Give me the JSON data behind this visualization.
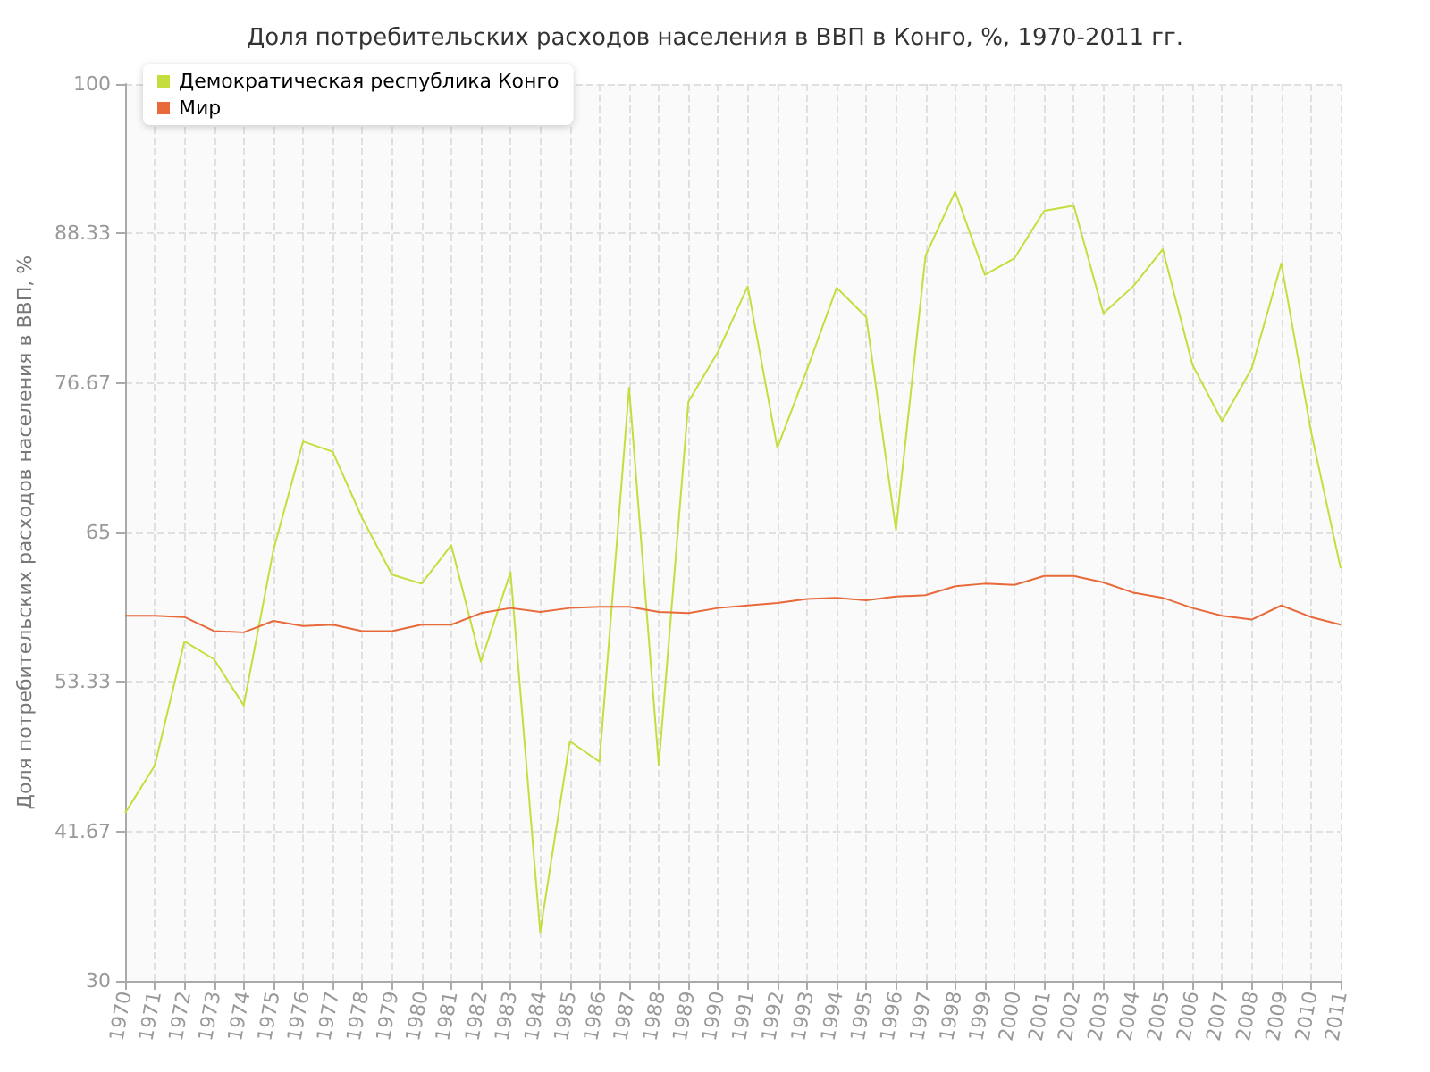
{
  "chart_data": {
    "type": "line",
    "title": "Доля потребительских расходов населения в ВВП в Конго, %, 1970-2011 гг.",
    "ylabel": "Доля потребительских расходов населения в ВВП, %",
    "categories": [
      "1970",
      "1971",
      "1972",
      "1973",
      "1974",
      "1975",
      "1976",
      "1977",
      "1978",
      "1979",
      "1980",
      "1981",
      "1982",
      "1983",
      "1984",
      "1985",
      "1986",
      "1987",
      "1988",
      "1989",
      "1990",
      "1991",
      "1992",
      "1993",
      "1994",
      "1995",
      "1996",
      "1997",
      "1998",
      "1999",
      "2000",
      "2001",
      "2002",
      "2003",
      "2004",
      "2005",
      "2006",
      "2007",
      "2008",
      "2009",
      "2010",
      "2011"
    ],
    "series": [
      {
        "name": "Демократическая республика Конго",
        "color": "#c5de3d",
        "values": [
          43.1,
          46.8,
          56.5,
          55.1,
          51.5,
          63.6,
          72.1,
          71.3,
          66.1,
          61.7,
          61.0,
          64.0,
          54.9,
          61.9,
          33.8,
          48.7,
          47.1,
          76.3,
          46.8,
          75.2,
          79.1,
          84.2,
          71.6,
          77.7,
          84.1,
          81.8,
          65.2,
          86.6,
          91.6,
          85.1,
          86.4,
          90.1,
          90.5,
          82.1,
          84.2,
          87.1,
          78.1,
          73.7,
          77.8,
          86.0,
          72.9,
          62.2
        ]
      },
      {
        "name": "Мир",
        "color": "#e8693a",
        "values": [
          58.5,
          58.5,
          58.4,
          57.3,
          57.2,
          58.1,
          57.7,
          57.8,
          57.3,
          57.3,
          57.8,
          57.8,
          58.7,
          59.1,
          58.8,
          59.1,
          59.2,
          59.2,
          58.8,
          58.7,
          59.1,
          59.3,
          59.5,
          59.8,
          59.9,
          59.7,
          60.0,
          60.1,
          60.8,
          61.0,
          60.9,
          61.6,
          61.6,
          61.1,
          60.3,
          59.9,
          59.1,
          58.5,
          58.2,
          59.3,
          58.4,
          57.8
        ]
      }
    ],
    "ylim": [
      30,
      100
    ],
    "yticks": [
      30,
      41.67,
      53.33,
      65,
      76.67,
      88.33,
      100
    ],
    "grid": true,
    "legend": "top left",
    "marker": "none",
    "line_style": "solid"
  }
}
